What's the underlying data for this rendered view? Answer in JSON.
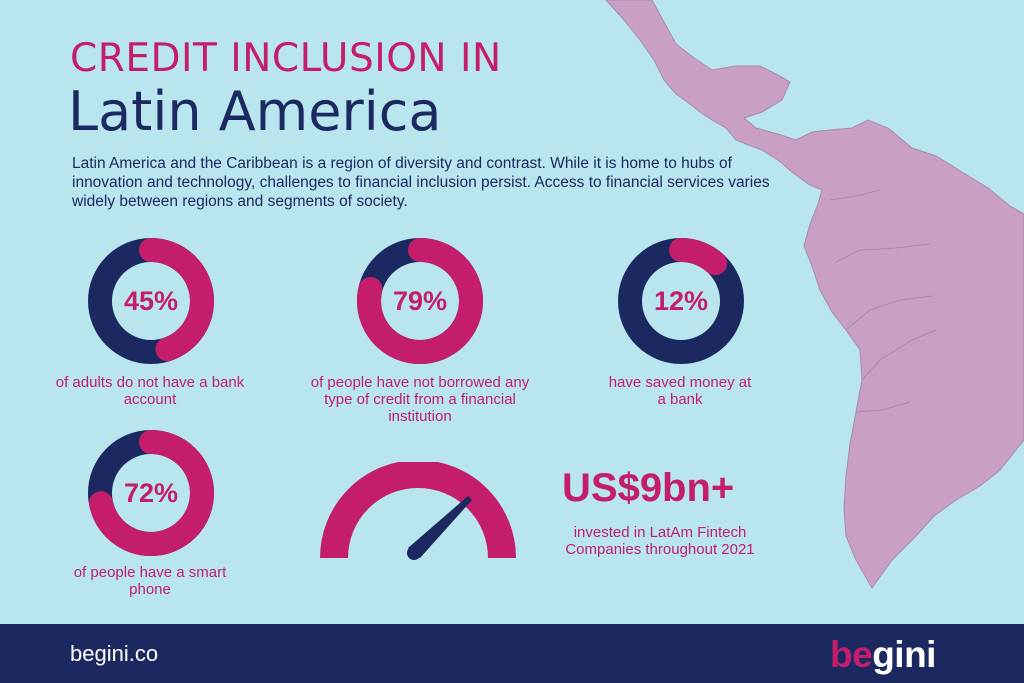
{
  "title": {
    "line1": "CREDIT INCLUSION IN",
    "line2": "Latin America"
  },
  "intro": "Latin America and the Caribbean is a region of diversity and contrast. While it is home to hubs of innovation and technology, challenges to financial inclusion persist. Access to financial services varies widely between regions and segments of society.",
  "stats": [
    {
      "value": 45,
      "label": "45%",
      "caption": "of adults do not have a bank account"
    },
    {
      "value": 79,
      "label": "79%",
      "caption": "of people have not borrowed any type of credit from a financial institution"
    },
    {
      "value": 12,
      "label": "12%",
      "caption": "have saved money at a bank"
    },
    {
      "value": 72,
      "label": "72%",
      "caption": "of people have a smart phone"
    }
  ],
  "fintech": {
    "amount": "US$9bn+",
    "caption": "invested in LatAm Fintech Companies throughout 2021"
  },
  "footer": {
    "url": "begini.co",
    "logo_part1": "be",
    "logo_part2": "gini"
  },
  "colors": {
    "background": "#b9e6ee",
    "accent": "#c41d6c",
    "navy": "#1b2960",
    "map": "#c9a0c4"
  }
}
